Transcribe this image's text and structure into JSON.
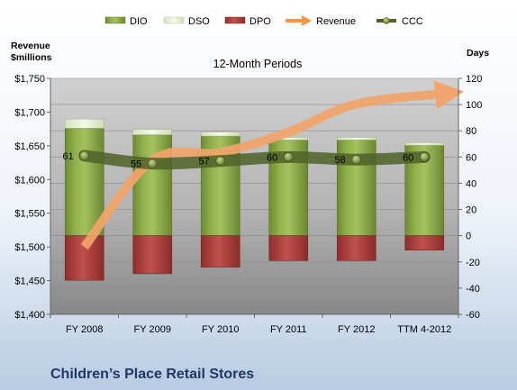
{
  "chart_data": {
    "type": "bar",
    "title": "12-Month Periods",
    "subtitle": "Children’s Place Retail Stores",
    "y_left_label": [
      "Revenue",
      "$millions"
    ],
    "y_right_label": "Days",
    "y_left_ticks": [
      "$1,400",
      "$1,450",
      "$1,500",
      "$1,550",
      "$1,600",
      "$1,650",
      "$1,700",
      "$1,750"
    ],
    "y_left_range": [
      1400,
      1750
    ],
    "y_right_ticks": [
      "-60",
      "-40",
      "-20",
      "0",
      "20",
      "40",
      "60",
      "80",
      "100",
      "120"
    ],
    "y_right_range": [
      -60,
      120
    ],
    "categories": [
      "FY 2008",
      "FY 2009",
      "FY 2010",
      "FY 2011",
      "FY 2012",
      "TTM 4-2012"
    ],
    "series": [
      {
        "name": "DIO",
        "axis": "right",
        "values": [
          82,
          77,
          76,
          73,
          73,
          69
        ]
      },
      {
        "name": "DSO",
        "axis": "right",
        "values": [
          7,
          4,
          3,
          2,
          2,
          2
        ]
      },
      {
        "name": "DPO",
        "axis": "right",
        "values": [
          -34,
          -29,
          -24,
          -19,
          -19,
          -11
        ]
      },
      {
        "name": "Revenue",
        "axis": "left",
        "values": [
          1500,
          1629,
          1640,
          1670,
          1712,
          1728
        ]
      },
      {
        "name": "CCC",
        "axis": "right",
        "values": [
          61,
          55,
          57,
          60,
          58,
          60
        ]
      }
    ],
    "ccc_labels": [
      "61",
      "55",
      "57",
      "60",
      "58",
      "60"
    ],
    "colors": {
      "DIO": "#77933c",
      "DIO_light": "#a9c868",
      "DSO": "#ebf1de",
      "DPO": "#c0504d",
      "DPO_dark": "#8e2f2d",
      "Revenue": "#f79646",
      "CCC": "#4f6228",
      "plot_bg": "#a6a6a6",
      "title_color": "#1f3864"
    },
    "legend_position": "top",
    "grid": true
  }
}
